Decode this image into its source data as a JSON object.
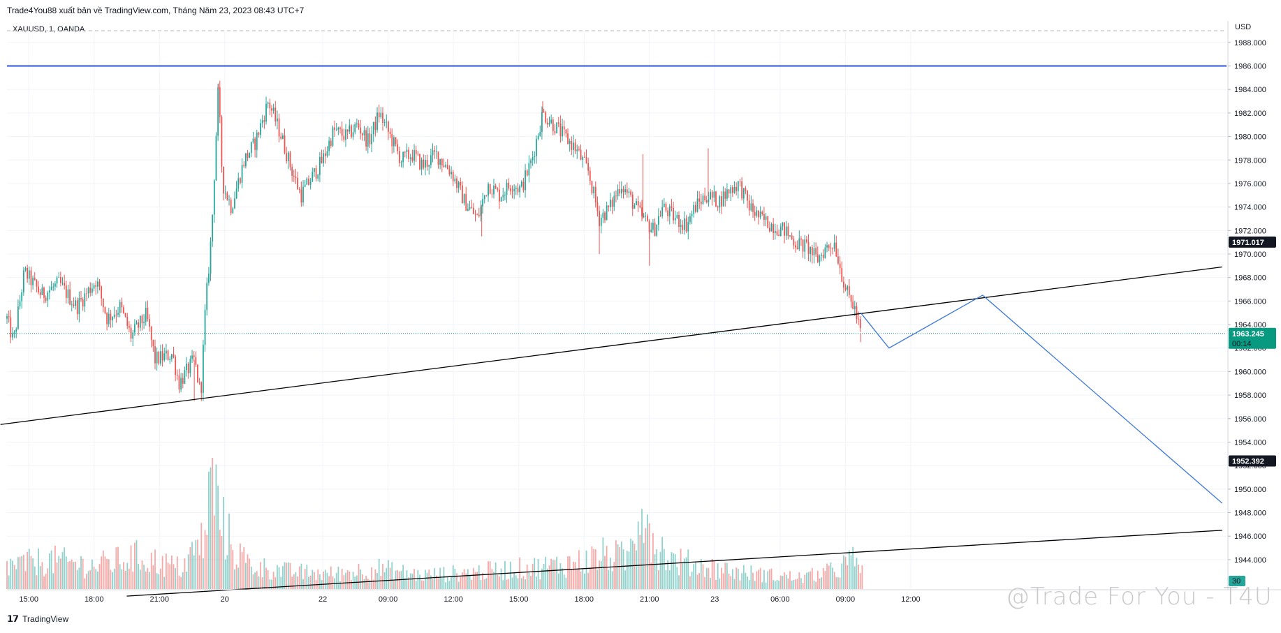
{
  "header": {
    "title": "Trade4You88 xuất bản về TradingView.com, Tháng Năm 23, 2023 08:43 UTC+7",
    "symbol": "XAUUSD, 1, OANDA",
    "currency": "USD"
  },
  "footer": {
    "logo_text": "TradingView"
  },
  "watermark": "@Trade For You - T4U",
  "colors": {
    "up": "#26a69a",
    "down": "#ef5350",
    "level": "#2a4fd6",
    "projection": "#3c78d8",
    "current": "#089981"
  },
  "chart_data": {
    "type": "candlestick",
    "symbol": "XAUUSD",
    "interval": "1",
    "ylim": [
      1941.5,
      1989
    ],
    "y_ticks": [
      1944,
      1946,
      1948,
      1950,
      1952,
      1954,
      1956,
      1958,
      1960,
      1962,
      1964,
      1966,
      1968,
      1970,
      1972,
      1974,
      1976,
      1978,
      1980,
      1982,
      1984,
      1986,
      1988
    ],
    "y_tick_labels": [
      "1944.000",
      "1946.000",
      "1948.000",
      "1950.000",
      "1952.000",
      "1954.000",
      "1956.000",
      "1958.000",
      "1960.000",
      "1962.000",
      "1964.000",
      "1966.000",
      "1968.000",
      "1970.000",
      "1972.000",
      "1974.000",
      "1976.000",
      "1978.000",
      "1980.000",
      "1982.000",
      "1984.000",
      "1986.000",
      "1988.000"
    ],
    "x_ticks": [
      {
        "t": 1,
        "label": "15:00"
      },
      {
        "t": 4,
        "label": "18:00"
      },
      {
        "t": 7,
        "label": "21:00"
      },
      {
        "t": 10,
        "label": "20"
      },
      {
        "t": 14.5,
        "label": "22"
      },
      {
        "t": 17.5,
        "label": "09:00"
      },
      {
        "t": 20.5,
        "label": "12:00"
      },
      {
        "t": 23.5,
        "label": "15:00"
      },
      {
        "t": 26.5,
        "label": "18:00"
      },
      {
        "t": 29.5,
        "label": "21:00"
      },
      {
        "t": 32.5,
        "label": "23"
      },
      {
        "t": 35.5,
        "label": "06:00"
      },
      {
        "t": 38.5,
        "label": "09:00"
      },
      {
        "t": 41.5,
        "label": "12:00"
      }
    ],
    "x_range": [
      0,
      56
    ],
    "price_path": [
      [
        0,
        1964.5
      ],
      [
        0.3,
        1962.5
      ],
      [
        0.8,
        1968.5
      ],
      [
        1.6,
        1966.5
      ],
      [
        2.4,
        1967.5
      ],
      [
        3.2,
        1965.5
      ],
      [
        4.1,
        1967.8
      ],
      [
        4.6,
        1964.5
      ],
      [
        5.2,
        1965.5
      ],
      [
        5.7,
        1963.0
      ],
      [
        6.4,
        1964.8
      ],
      [
        6.8,
        1961.0
      ],
      [
        7.6,
        1961.5
      ],
      [
        7.9,
        1959.0
      ],
      [
        8.6,
        1961.0
      ],
      [
        8.9,
        1958.0
      ],
      [
        9.1,
        1965.0
      ],
      [
        9.4,
        1972.0
      ],
      [
        9.7,
        1984.0
      ],
      [
        9.9,
        1976.0
      ],
      [
        10.3,
        1974.0
      ],
      [
        10.9,
        1978.0
      ],
      [
        11.4,
        1979.5
      ],
      [
        12.0,
        1983.0
      ],
      [
        12.6,
        1980.0
      ],
      [
        13.1,
        1977.0
      ],
      [
        13.5,
        1975.0
      ],
      [
        14.0,
        1976.5
      ],
      [
        14.5,
        1978.0
      ],
      [
        15.0,
        1980.5
      ],
      [
        15.6,
        1980.0
      ],
      [
        16.1,
        1981.0
      ],
      [
        16.6,
        1979.5
      ],
      [
        17.1,
        1982.0
      ],
      [
        17.6,
        1980.0
      ],
      [
        18.1,
        1978.0
      ],
      [
        18.6,
        1978.5
      ],
      [
        19.1,
        1977.5
      ],
      [
        19.7,
        1978.5
      ],
      [
        20.4,
        1977.0
      ],
      [
        21.0,
        1974.5
      ],
      [
        21.6,
        1973.0
      ],
      [
        22.1,
        1976.0
      ],
      [
        22.6,
        1975.0
      ],
      [
        23.2,
        1976.0
      ],
      [
        23.6,
        1975.5
      ],
      [
        24.1,
        1978.0
      ],
      [
        24.6,
        1982.0
      ],
      [
        25.1,
        1981.0
      ],
      [
        25.6,
        1980.0
      ],
      [
        26.1,
        1979.0
      ],
      [
        26.7,
        1977.0
      ],
      [
        27.2,
        1973.0
      ],
      [
        27.7,
        1974.0
      ],
      [
        28.2,
        1976.0
      ],
      [
        28.7,
        1974.5
      ],
      [
        29.2,
        1973.0
      ],
      [
        29.7,
        1972.0
      ],
      [
        30.1,
        1974.0
      ],
      [
        30.7,
        1973.0
      ],
      [
        31.2,
        1972.5
      ],
      [
        31.6,
        1974.0
      ],
      [
        32.1,
        1975.0
      ],
      [
        32.7,
        1974.5
      ],
      [
        33.2,
        1975.5
      ],
      [
        33.6,
        1976.0
      ],
      [
        34.1,
        1974.0
      ],
      [
        34.6,
        1973.0
      ],
      [
        35.1,
        1972.5
      ],
      [
        35.7,
        1972.0
      ],
      [
        36.2,
        1971.0
      ],
      [
        36.8,
        1970.5
      ],
      [
        37.2,
        1969.5
      ],
      [
        37.6,
        1970.5
      ],
      [
        38.0,
        1971.0
      ],
      [
        38.3,
        1968.5
      ],
      [
        38.6,
        1966.5
      ],
      [
        38.9,
        1965.5
      ],
      [
        39.2,
        1963.245
      ]
    ],
    "wick_highs": [
      [
        9.7,
        1984.5
      ],
      [
        29.2,
        1978.5
      ],
      [
        32.2,
        1979.0
      ],
      [
        24.6,
        1983.0
      ]
    ],
    "wick_lows": [
      [
        8.6,
        1957.5
      ],
      [
        27.2,
        1970.0
      ],
      [
        29.5,
        1969.0
      ],
      [
        21.8,
        1971.5
      ],
      [
        39.2,
        1962.5
      ]
    ],
    "volume_path": [
      [
        0,
        0.2
      ],
      [
        2,
        0.25
      ],
      [
        4,
        0.2
      ],
      [
        6,
        0.28
      ],
      [
        8,
        0.18
      ],
      [
        9.1,
        0.45
      ],
      [
        9.4,
        1.0
      ],
      [
        9.8,
        0.6
      ],
      [
        10.4,
        0.35
      ],
      [
        11.2,
        0.2
      ],
      [
        13,
        0.15
      ],
      [
        15,
        0.13
      ],
      [
        17,
        0.18
      ],
      [
        19,
        0.12
      ],
      [
        21,
        0.14
      ],
      [
        23,
        0.17
      ],
      [
        25,
        0.2
      ],
      [
        26.5,
        0.24
      ],
      [
        27.5,
        0.3
      ],
      [
        28.5,
        0.26
      ],
      [
        29.2,
        0.85
      ],
      [
        29.6,
        0.45
      ],
      [
        30.5,
        0.25
      ],
      [
        32,
        0.2
      ],
      [
        33.5,
        0.15
      ],
      [
        35,
        0.12
      ],
      [
        36.5,
        0.1
      ],
      [
        38,
        0.16
      ],
      [
        38.8,
        0.25
      ],
      [
        39.3,
        0.18
      ]
    ],
    "horizontal_levels": [
      {
        "price": 1986.0,
        "color": "#2a4fd6"
      }
    ],
    "trendlines": [
      {
        "points": [
          [
            -0.3,
            1955.5
          ],
          [
            55.8,
            1968.9
          ]
        ],
        "color": "#000000"
      },
      {
        "points": [
          [
            5.5,
            1940.9
          ],
          [
            55.8,
            1946.5
          ]
        ],
        "color": "#000000"
      }
    ],
    "projection": [
      [
        39.2,
        1965.0
      ],
      [
        40.5,
        1962.0
      ],
      [
        44.8,
        1966.5
      ],
      [
        55.8,
        1948.8
      ]
    ],
    "current_price_line": 1963.245,
    "price_badges": [
      {
        "price": 1971.017,
        "label": "1971.017",
        "style": "dark"
      },
      {
        "price": 1963.245,
        "label": "1963.245",
        "sub": "00:14",
        "style": "green"
      },
      {
        "price": 1952.392,
        "label": "1952.392",
        "style": "dark"
      }
    ],
    "volume_badge": "30"
  }
}
